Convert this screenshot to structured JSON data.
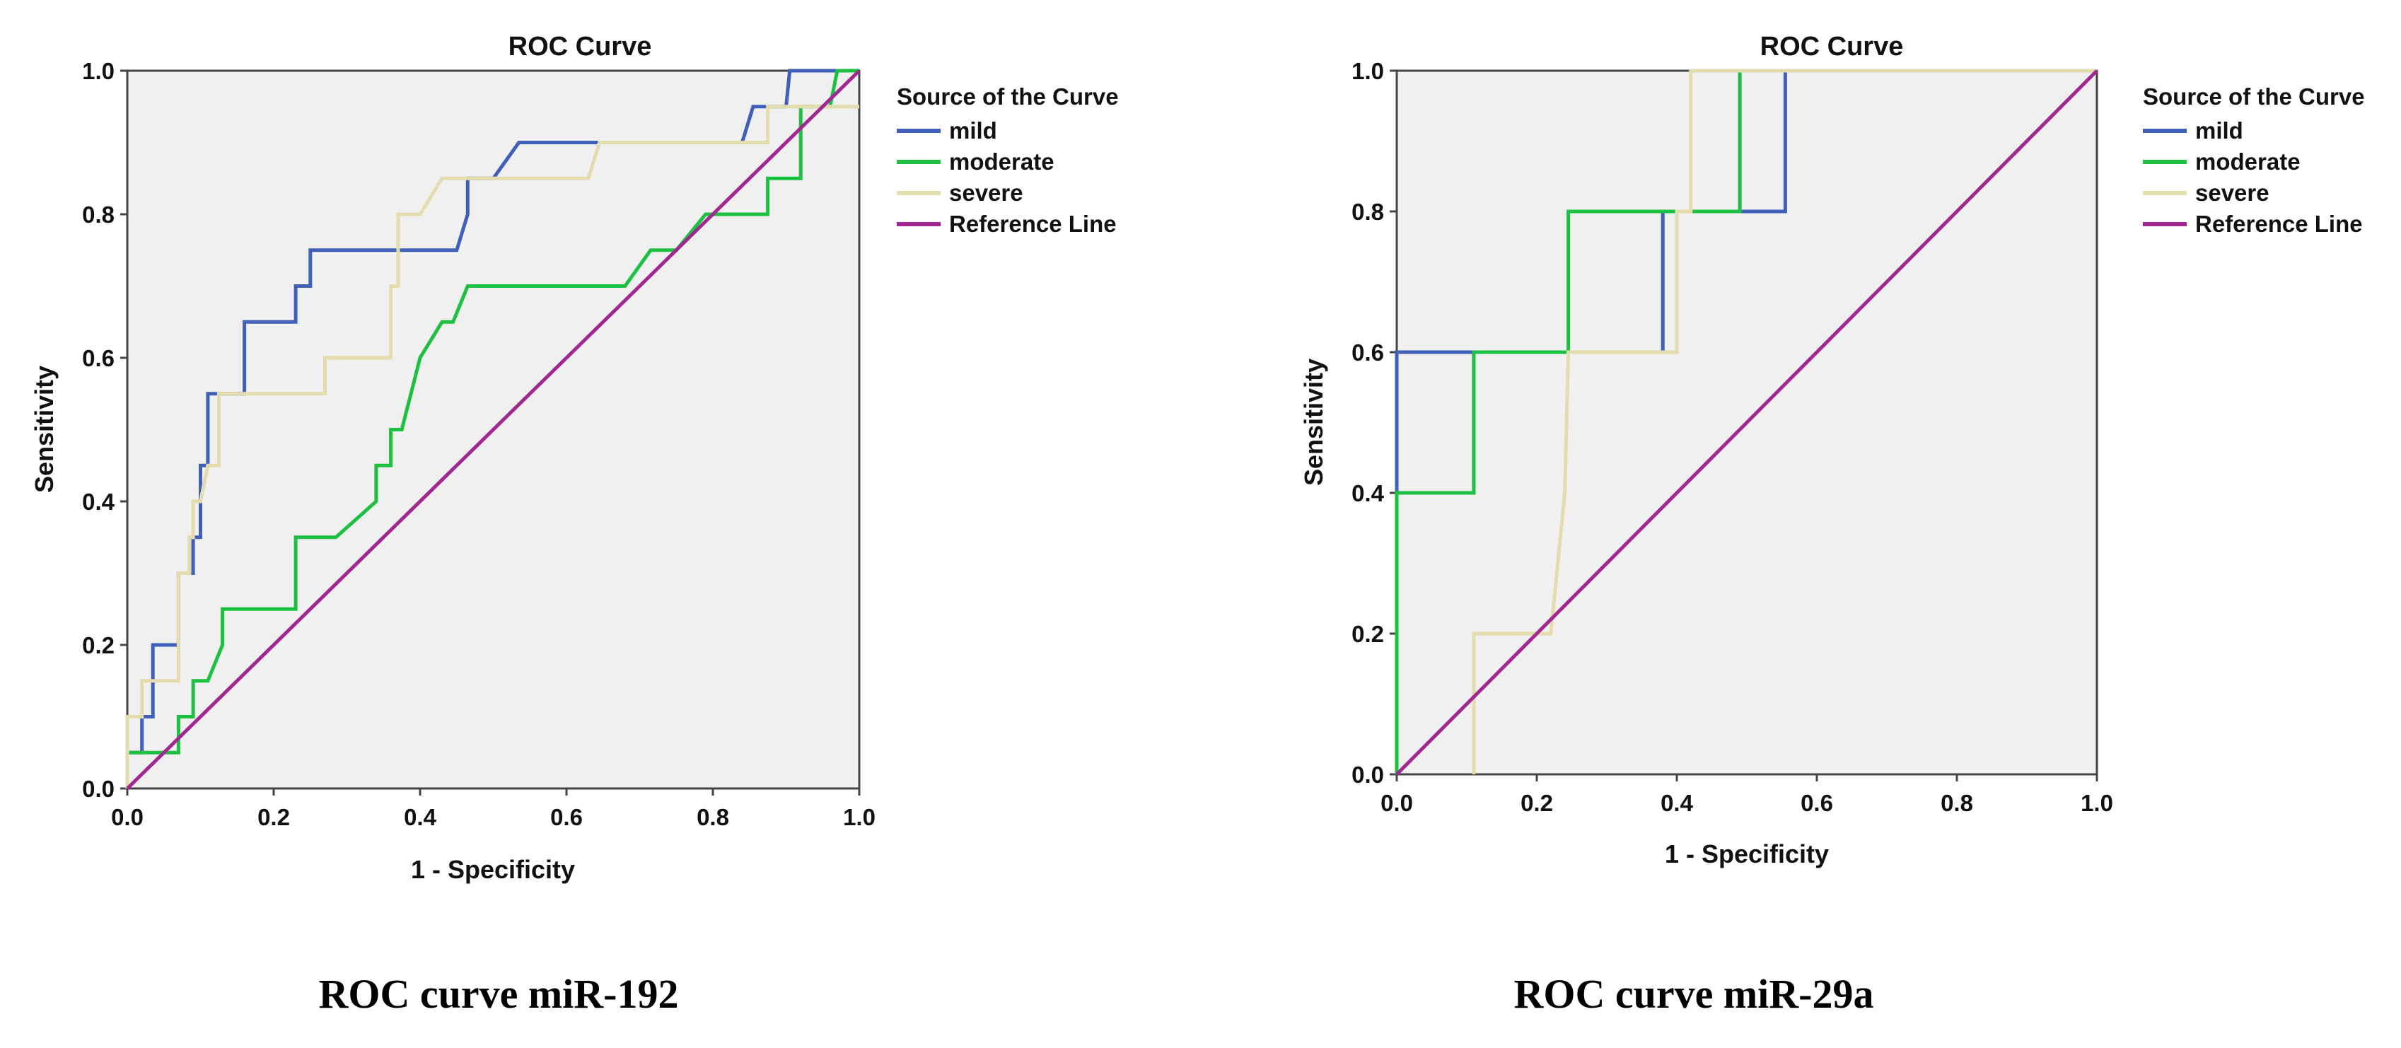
{
  "figure": {
    "captions": [
      "ROC curve miR-192",
      "ROC curve miR-29a"
    ]
  },
  "colors": {
    "mild": "#3f5fb8",
    "moderate": "#1ec042",
    "severe": "#e3dcac",
    "Reference Line": "#a02890",
    "plot_bg": "#f0f0f0",
    "axis": "#444444"
  },
  "chart_data": [
    {
      "type": "line",
      "title": "ROC Curve",
      "xlabel": "1 - Specificity",
      "ylabel": "Sensitivity",
      "xlim": [
        0,
        1
      ],
      "ylim": [
        0,
        1
      ],
      "xticks": [
        "0.0",
        "0.2",
        "0.4",
        "0.6",
        "0.8",
        "1.0"
      ],
      "yticks": [
        "0.0",
        "0.2",
        "0.4",
        "0.6",
        "0.8",
        "1.0"
      ],
      "grid": false,
      "legend_title": "Source of the Curve",
      "legend_position": "right",
      "caption": "ROC curve miR-192",
      "series": [
        {
          "name": "mild",
          "points": [
            [
              0,
              0
            ],
            [
              0,
              0.05
            ],
            [
              0.02,
              0.05
            ],
            [
              0.02,
              0.1
            ],
            [
              0.035,
              0.1
            ],
            [
              0.035,
              0.2
            ],
            [
              0.07,
              0.2
            ],
            [
              0.07,
              0.3
            ],
            [
              0.09,
              0.3
            ],
            [
              0.09,
              0.35
            ],
            [
              0.1,
              0.35
            ],
            [
              0.1,
              0.45
            ],
            [
              0.11,
              0.45
            ],
            [
              0.11,
              0.55
            ],
            [
              0.13,
              0.55
            ],
            [
              0.16,
              0.55
            ],
            [
              0.16,
              0.65
            ],
            [
              0.23,
              0.65
            ],
            [
              0.23,
              0.7
            ],
            [
              0.25,
              0.7
            ],
            [
              0.25,
              0.75
            ],
            [
              0.45,
              0.75
            ],
            [
              0.465,
              0.8
            ],
            [
              0.465,
              0.85
            ],
            [
              0.5,
              0.85
            ],
            [
              0.535,
              0.9
            ],
            [
              0.84,
              0.9
            ],
            [
              0.855,
              0.95
            ],
            [
              0.9,
              0.95
            ],
            [
              0.905,
              1.0
            ],
            [
              1.0,
              1.0
            ]
          ]
        },
        {
          "name": "moderate",
          "points": [
            [
              0,
              0
            ],
            [
              0,
              0.05
            ],
            [
              0.07,
              0.05
            ],
            [
              0.07,
              0.1
            ],
            [
              0.09,
              0.1
            ],
            [
              0.09,
              0.15
            ],
            [
              0.11,
              0.15
            ],
            [
              0.13,
              0.2
            ],
            [
              0.13,
              0.25
            ],
            [
              0.23,
              0.25
            ],
            [
              0.23,
              0.35
            ],
            [
              0.285,
              0.35
            ],
            [
              0.34,
              0.4
            ],
            [
              0.34,
              0.45
            ],
            [
              0.36,
              0.45
            ],
            [
              0.36,
              0.5
            ],
            [
              0.375,
              0.5
            ],
            [
              0.4,
              0.6
            ],
            [
              0.43,
              0.65
            ],
            [
              0.445,
              0.65
            ],
            [
              0.465,
              0.7
            ],
            [
              0.68,
              0.7
            ],
            [
              0.715,
              0.75
            ],
            [
              0.75,
              0.75
            ],
            [
              0.79,
              0.8
            ],
            [
              0.875,
              0.8
            ],
            [
              0.875,
              0.85
            ],
            [
              0.92,
              0.85
            ],
            [
              0.92,
              0.95
            ],
            [
              0.96,
              0.95
            ],
            [
              0.97,
              1.0
            ],
            [
              1.0,
              1.0
            ]
          ]
        },
        {
          "name": "severe",
          "points": [
            [
              0,
              0
            ],
            [
              0,
              0.1
            ],
            [
              0.02,
              0.1
            ],
            [
              0.02,
              0.15
            ],
            [
              0.07,
              0.15
            ],
            [
              0.07,
              0.3
            ],
            [
              0.085,
              0.3
            ],
            [
              0.085,
              0.35
            ],
            [
              0.09,
              0.35
            ],
            [
              0.09,
              0.4
            ],
            [
              0.1,
              0.4
            ],
            [
              0.11,
              0.45
            ],
            [
              0.125,
              0.45
            ],
            [
              0.125,
              0.55
            ],
            [
              0.27,
              0.55
            ],
            [
              0.27,
              0.6
            ],
            [
              0.36,
              0.6
            ],
            [
              0.36,
              0.7
            ],
            [
              0.37,
              0.7
            ],
            [
              0.37,
              0.8
            ],
            [
              0.39,
              0.8
            ],
            [
              0.4,
              0.8
            ],
            [
              0.43,
              0.85
            ],
            [
              0.63,
              0.85
            ],
            [
              0.645,
              0.9
            ],
            [
              0.875,
              0.9
            ],
            [
              0.875,
              0.95
            ],
            [
              0.9,
              0.95
            ],
            [
              1.0,
              0.95
            ]
          ]
        },
        {
          "name": "Reference Line",
          "points": [
            [
              0,
              0
            ],
            [
              1,
              1
            ]
          ]
        }
      ]
    },
    {
      "type": "line",
      "title": "ROC Curve",
      "xlabel": "1 - Specificity",
      "ylabel": "Sensitivity",
      "xlim": [
        0,
        1
      ],
      "ylim": [
        0,
        1
      ],
      "xticks": [
        "0.0",
        "0.2",
        "0.4",
        "0.6",
        "0.8",
        "1.0"
      ],
      "yticks": [
        "0.0",
        "0.2",
        "0.4",
        "0.6",
        "0.8",
        "1.0"
      ],
      "grid": false,
      "legend_title": "Source of the Curve",
      "legend_position": "right",
      "caption": "ROC curve miR-29a",
      "series": [
        {
          "name": "mild",
          "points": [
            [
              0,
              0
            ],
            [
              0,
              0.6
            ],
            [
              0.38,
              0.6
            ],
            [
              0.38,
              0.8
            ],
            [
              0.49,
              0.8
            ],
            [
              0.49,
              0.8
            ],
            [
              0.555,
              0.8
            ],
            [
              0.555,
              1.0
            ],
            [
              1.0,
              1.0
            ]
          ]
        },
        {
          "name": "moderate",
          "points": [
            [
              0,
              0
            ],
            [
              0,
              0.4
            ],
            [
              0.11,
              0.4
            ],
            [
              0.11,
              0.6
            ],
            [
              0.245,
              0.6
            ],
            [
              0.245,
              0.8
            ],
            [
              0.49,
              0.8
            ],
            [
              0.49,
              1.0
            ],
            [
              1.0,
              1.0
            ]
          ]
        },
        {
          "name": "severe",
          "points": [
            [
              0.11,
              0
            ],
            [
              0.11,
              0.2
            ],
            [
              0.22,
              0.2
            ],
            [
              0.24,
              0.4
            ],
            [
              0.245,
              0.6
            ],
            [
              0.4,
              0.6
            ],
            [
              0.4,
              0.8
            ],
            [
              0.42,
              0.8
            ],
            [
              0.42,
              1.0
            ],
            [
              1.0,
              1.0
            ]
          ]
        },
        {
          "name": "Reference Line",
          "points": [
            [
              0,
              0
            ],
            [
              1,
              1
            ]
          ]
        }
      ]
    }
  ]
}
